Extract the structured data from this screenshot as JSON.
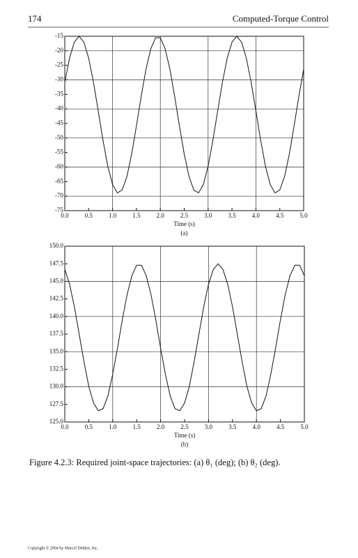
{
  "header": {
    "page_number": "174",
    "running_title": "Computed-Torque Control"
  },
  "chart_data": [
    {
      "type": "line",
      "xlabel": "Time (s)",
      "panel": "(a)",
      "x": [
        0,
        0.1,
        0.2,
        0.3,
        0.4,
        0.5,
        0.6,
        0.7,
        0.8,
        0.9,
        1,
        1.1,
        1.2,
        1.3,
        1.4,
        1.5,
        1.6,
        1.7,
        1.8,
        1.9,
        2,
        2.1,
        2.2,
        2.3,
        2.4,
        2.5,
        2.6,
        2.7,
        2.8,
        2.9,
        3,
        3.1,
        3.2,
        3.3,
        3.4,
        3.5,
        3.6,
        3.7,
        3.8,
        3.9,
        4,
        4.1,
        4.2,
        4.3,
        4.4,
        4.5,
        4.6,
        4.7,
        4.8,
        4.9,
        5
      ],
      "series": [
        {
          "color": "#111111",
          "values": [
            -30.8,
            -22.5,
            -17.0,
            -15.0,
            -17.0,
            -22.5,
            -30.8,
            -40.7,
            -50.8,
            -59.7,
            -66.0,
            -68.9,
            -67.9,
            -63.3,
            -55.5,
            -45.8,
            -35.6,
            -26.3,
            -19.3,
            -15.5,
            -15.5,
            -19.3,
            -26.3,
            -35.7,
            -45.9,
            -55.5,
            -63.2,
            -67.9,
            -68.9,
            -66.0,
            -59.7,
            -50.8,
            -40.7,
            -30.8,
            -22.5,
            -17.0,
            -15.0,
            -17.0,
            -22.5,
            -30.8,
            -40.7,
            -50.8,
            -59.7,
            -66.0,
            -68.9,
            -67.9,
            -63.3,
            -55.5,
            -45.8,
            -35.6,
            -26.3
          ]
        }
      ],
      "xlim": [
        0,
        5
      ],
      "xticks": [
        {
          "value": 0,
          "label": "0.0"
        },
        {
          "value": 0.5,
          "label": "0.5"
        },
        {
          "value": 1,
          "label": "1.0"
        },
        {
          "value": 1.5,
          "label": "1.5"
        },
        {
          "value": 2,
          "label": "2.0"
        },
        {
          "value": 2.5,
          "label": "2.5"
        },
        {
          "value": 3,
          "label": "3.0"
        },
        {
          "value": 3.5,
          "label": "3.5"
        },
        {
          "value": 4,
          "label": "4.0"
        },
        {
          "value": 4.5,
          "label": "4.5"
        },
        {
          "value": 5,
          "label": "5.0"
        }
      ],
      "ylim": [
        -75,
        -15
      ],
      "yticks": [
        -15,
        -20,
        -25,
        -30,
        -35,
        -40,
        -45,
        -50,
        -55,
        -60,
        -65,
        -70,
        -75
      ],
      "xgrid": [
        1,
        2,
        3,
        4
      ],
      "ygrid": [
        -20,
        -30,
        -40,
        -50,
        -60,
        -70
      ]
    },
    {
      "type": "line",
      "xlabel": "Time (s)",
      "panel": "(b)",
      "x": [
        0,
        0.1,
        0.2,
        0.3,
        0.4,
        0.5,
        0.6,
        0.7,
        0.8,
        0.9,
        1,
        1.1,
        1.2,
        1.3,
        1.4,
        1.5,
        1.6,
        1.7,
        1.8,
        1.9,
        2,
        2.1,
        2.2,
        2.3,
        2.4,
        2.5,
        2.6,
        2.7,
        2.8,
        2.9,
        3,
        3.1,
        3.2,
        3.3,
        3.4,
        3.5,
        3.6,
        3.7,
        3.8,
        3.9,
        4,
        4.1,
        4.2,
        4.3,
        4.4,
        4.5,
        4.6,
        4.7,
        4.8,
        4.9,
        5
      ],
      "series": [
        {
          "color": "#111111",
          "values": [
            146.7,
            144.6,
            141.4,
            137.5,
            133.6,
            130.1,
            127.7,
            126.6,
            126.9,
            128.7,
            131.8,
            135.5,
            139.5,
            143.1,
            145.8,
            147.3,
            147.3,
            145.8,
            143.1,
            139.5,
            135.5,
            131.8,
            128.7,
            126.9,
            126.6,
            127.7,
            130.1,
            133.6,
            137.5,
            141.4,
            144.6,
            146.7,
            147.5,
            146.7,
            144.6,
            141.4,
            137.5,
            133.6,
            130.1,
            127.7,
            126.6,
            126.9,
            128.7,
            131.8,
            135.5,
            139.5,
            143.1,
            145.8,
            147.3,
            147.3,
            145.8
          ]
        }
      ],
      "xlim": [
        0,
        5
      ],
      "xticks": [
        {
          "value": 0,
          "label": "0.0"
        },
        {
          "value": 0.5,
          "label": "0.5"
        },
        {
          "value": 1,
          "label": "1.0"
        },
        {
          "value": 1.5,
          "label": "1.5"
        },
        {
          "value": 2,
          "label": "2.0"
        },
        {
          "value": 2.5,
          "label": "2.5"
        },
        {
          "value": 3,
          "label": "3.0"
        },
        {
          "value": 3.5,
          "label": "3.5"
        },
        {
          "value": 4,
          "label": "4.0"
        },
        {
          "value": 4.5,
          "label": "4.5"
        },
        {
          "value": 5,
          "label": "5.0"
        }
      ],
      "ylim": [
        125,
        150
      ],
      "yticks": [
        {
          "value": 150,
          "label": "150.0"
        },
        {
          "value": 147.5,
          "label": "147.5"
        },
        {
          "value": 145,
          "label": "145.0"
        },
        {
          "value": 142.5,
          "label": "142.5"
        },
        {
          "value": 140,
          "label": "140.0"
        },
        {
          "value": 137.5,
          "label": "137.5"
        },
        {
          "value": 135,
          "label": "135.0"
        },
        {
          "value": 132.5,
          "label": "132.5"
        },
        {
          "value": 130,
          "label": "130.0"
        },
        {
          "value": 127.5,
          "label": "127.5"
        },
        {
          "value": 125,
          "label": "125.0"
        }
      ],
      "xgrid": [
        1,
        2,
        3,
        4
      ],
      "ygrid": [
        145,
        140,
        135,
        130
      ]
    }
  ],
  "caption": "Figure 4.2.3: Required joint-space trajectories: (a) θ₁ (deg); (b) θ₂ (deg).",
  "copyright": "Copyright © 2004 by Marcel Dekker, Inc."
}
